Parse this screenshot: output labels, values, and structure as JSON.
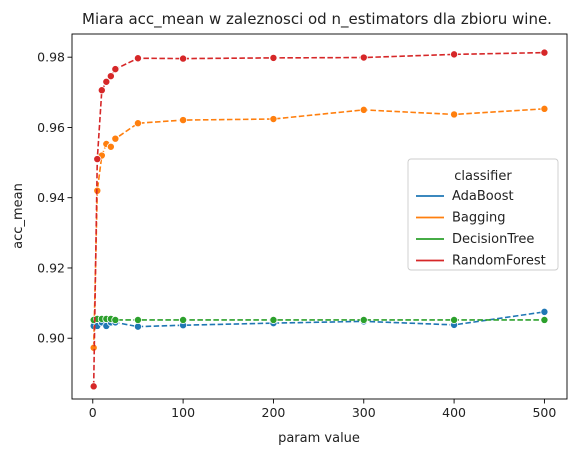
{
  "chart_data": {
    "type": "line",
    "title": "Miara acc_mean w zaleznosci od n_estimators dla zbioru wine.",
    "xlabel": "param value",
    "ylabel": "acc_mean",
    "xlim": [
      -23,
      525
    ],
    "ylim": [
      0.8827,
      0.9866
    ],
    "xticks": [
      0,
      100,
      200,
      300,
      400,
      500
    ],
    "yticks": [
      0.9,
      0.92,
      0.94,
      0.96,
      0.98
    ],
    "ytick_labels": [
      "0.90",
      "0.92",
      "0.94",
      "0.96",
      "0.98"
    ],
    "grid": false,
    "legend": {
      "title": "classifier",
      "placement": "center-right"
    },
    "series": [
      {
        "name": "AdaBoost",
        "color": "#1f77b4",
        "x": [
          1,
          5,
          10,
          15,
          20,
          25,
          50,
          100,
          200,
          300,
          400,
          500
        ],
        "y": [
          0.9035,
          0.9035,
          0.9045,
          0.9035,
          0.9045,
          0.9045,
          0.9033,
          0.9037,
          0.9043,
          0.9048,
          0.9038,
          0.9075
        ]
      },
      {
        "name": "Bagging",
        "color": "#ff7f0e",
        "x": [
          1,
          5,
          10,
          15,
          20,
          25,
          50,
          100,
          200,
          300,
          400,
          500
        ],
        "y": [
          0.8973,
          0.942,
          0.952,
          0.9553,
          0.9545,
          0.9568,
          0.9612,
          0.9621,
          0.9624,
          0.965,
          0.9637,
          0.9653
        ]
      },
      {
        "name": "DecisionTree",
        "color": "#2ca02c",
        "x": [
          1,
          5,
          10,
          15,
          20,
          25,
          50,
          100,
          200,
          300,
          400,
          500
        ],
        "y": [
          0.9052,
          0.9055,
          0.9055,
          0.9055,
          0.9055,
          0.9052,
          0.9052,
          0.9052,
          0.9052,
          0.9052,
          0.9052,
          0.9052
        ]
      },
      {
        "name": "RandomForest",
        "color": "#d62728",
        "x": [
          1,
          5,
          10,
          15,
          20,
          25,
          50,
          100,
          200,
          300,
          400,
          500
        ],
        "y": [
          0.8863,
          0.951,
          0.9706,
          0.973,
          0.9746,
          0.9766,
          0.9797,
          0.9796,
          0.9798,
          0.9799,
          0.9808,
          0.9813
        ]
      }
    ]
  }
}
